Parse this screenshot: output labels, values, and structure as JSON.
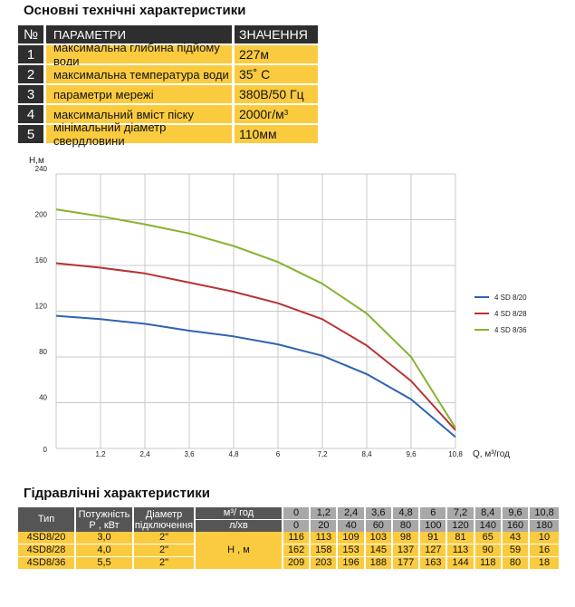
{
  "spec": {
    "title": "Основні технічні характеристики",
    "header": {
      "num": "№",
      "param": "ПАРАМЕТРИ",
      "value": "ЗНАЧЕННЯ"
    },
    "rows": [
      {
        "num": "1",
        "param": "максимальна глибина підйому води",
        "value": "227м"
      },
      {
        "num": "2",
        "param": "максимальна температура води",
        "value": "35˚ С"
      },
      {
        "num": "3",
        "param": "параметри мережі",
        "value": "380В/50 Гц"
      },
      {
        "num": "4",
        "param": "максимальний вміст піску",
        "value": "2000г/м",
        "value_sup": "3"
      },
      {
        "num": "5",
        "param": "мінімальний діаметр свердловини",
        "value": "110мм"
      }
    ]
  },
  "chart_data": {
    "type": "line",
    "ylabel": "Н,м",
    "xlabel": "Q, м³/год",
    "x": [
      0,
      1.2,
      2.4,
      3.6,
      4.8,
      6,
      7.2,
      8.4,
      9.6,
      10.8
    ],
    "xtick_labels": [
      "0",
      "1,2",
      "2,4",
      "3,6",
      "4,8",
      "6",
      "7,2",
      "8,4",
      "9,6",
      "10,8"
    ],
    "ylim": [
      0,
      240
    ],
    "yticks": [
      0,
      40,
      80,
      120,
      160,
      200,
      240
    ],
    "xlim": [
      0,
      10.8
    ],
    "grid": true,
    "legend_position": "right",
    "series": [
      {
        "name": "4 SD 8/20",
        "color": "#2e63b0",
        "values": [
          116,
          113,
          109,
          103,
          98,
          91,
          81,
          65,
          43,
          10
        ]
      },
      {
        "name": "4 SD 8/28",
        "color": "#b83232",
        "values": [
          162,
          158,
          153,
          145,
          137,
          127,
          113,
          90,
          59,
          16
        ]
      },
      {
        "name": "4 SD 8/36",
        "color": "#86b42e",
        "values": [
          209,
          203,
          196,
          188,
          177,
          163,
          144,
          118,
          80,
          18
        ]
      }
    ]
  },
  "hydraulic": {
    "title": "Гідравлічні характеристики",
    "col_type": "Тип",
    "col_power": "Потужність Р , кВт",
    "col_diameter": "Діаметр підключення",
    "flow_unit_m3": "м³/ год",
    "flow_unit_l": "л/хв",
    "head_label": "Н , м",
    "flow_m3": [
      "0",
      "1,2",
      "2,4",
      "3,6",
      "4,8",
      "6",
      "7,2",
      "8,4",
      "9,6",
      "10,8"
    ],
    "flow_l": [
      "0",
      "20",
      "40",
      "60",
      "80",
      "100",
      "120",
      "140",
      "160",
      "180"
    ],
    "rows": [
      {
        "type": "4SD8/20",
        "power": "3,0",
        "diameter": "2\"",
        "head": [
          "116",
          "113",
          "109",
          "103",
          "98",
          "91",
          "81",
          "65",
          "43",
          "10"
        ]
      },
      {
        "type": "4SD8/28",
        "power": "4,0",
        "diameter": "2\"",
        "head": [
          "162",
          "158",
          "153",
          "145",
          "137",
          "127",
          "113",
          "90",
          "59",
          "16"
        ]
      },
      {
        "type": "4SD8/36",
        "power": "5,5",
        "diameter": "2\"",
        "head": [
          "209",
          "203",
          "196",
          "188",
          "177",
          "163",
          "144",
          "118",
          "80",
          "18"
        ]
      }
    ]
  }
}
